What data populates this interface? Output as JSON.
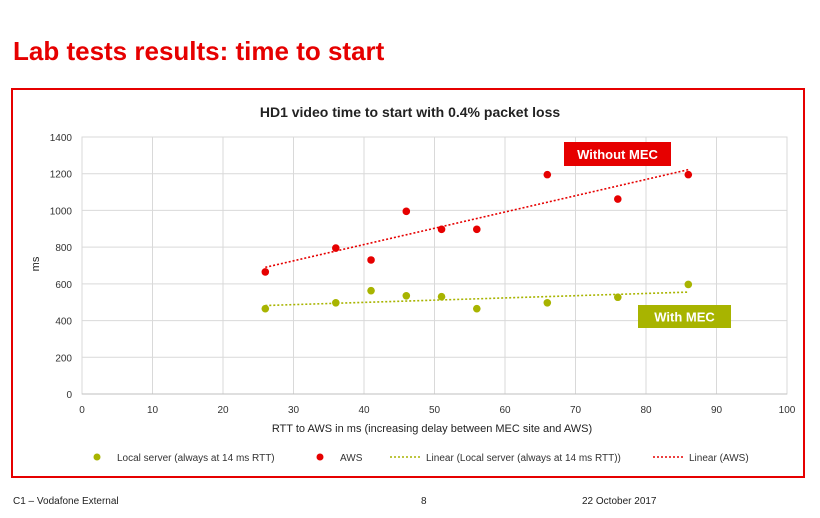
{
  "slide": {
    "title": "Lab tests results: time to start"
  },
  "footer": {
    "classification": "C1 – Vodafone External",
    "page_number": "8",
    "date": "22 October 2017"
  },
  "chart_data": {
    "type": "scatter",
    "title": "HD1 video time to start with 0.4% packet loss",
    "xlabel": "RTT to AWS in ms (increasing delay between MEC site and AWS)",
    "ylabel": "ms",
    "xlim": [
      0,
      100
    ],
    "ylim": [
      0,
      1400
    ],
    "xticks": [
      0,
      10,
      20,
      30,
      40,
      50,
      60,
      70,
      80,
      90,
      100
    ],
    "yticks": [
      0,
      200,
      400,
      600,
      800,
      1000,
      1200,
      1400
    ],
    "grid": true,
    "series": [
      {
        "name": "Local server (always at 14 ms RTT)",
        "color": "#a8b400",
        "x": [
          26,
          36,
          41,
          46,
          51,
          56,
          66,
          76,
          86
        ],
        "y": [
          465,
          497,
          563,
          535,
          530,
          465,
          497,
          527,
          597
        ]
      },
      {
        "name": "AWS",
        "color": "#e60000",
        "x": [
          26,
          36,
          41,
          46,
          51,
          56,
          66,
          76,
          86
        ],
        "y": [
          665,
          795,
          730,
          995,
          897,
          897,
          1195,
          1062,
          1195
        ]
      }
    ],
    "trendlines": [
      {
        "name": "Linear (Local server (always at 14 ms RTT))",
        "color": "#a8b400",
        "x": [
          26,
          86
        ],
        "y": [
          482,
          555
        ]
      },
      {
        "name": "Linear (AWS)",
        "color": "#e60000",
        "x": [
          26,
          86
        ],
        "y": [
          690,
          1222
        ]
      }
    ],
    "annotations": [
      {
        "text": "Without MEC",
        "color": "#e60000"
      },
      {
        "text": "With MEC",
        "color": "#a8b400"
      }
    ],
    "legend_position": "bottom"
  }
}
